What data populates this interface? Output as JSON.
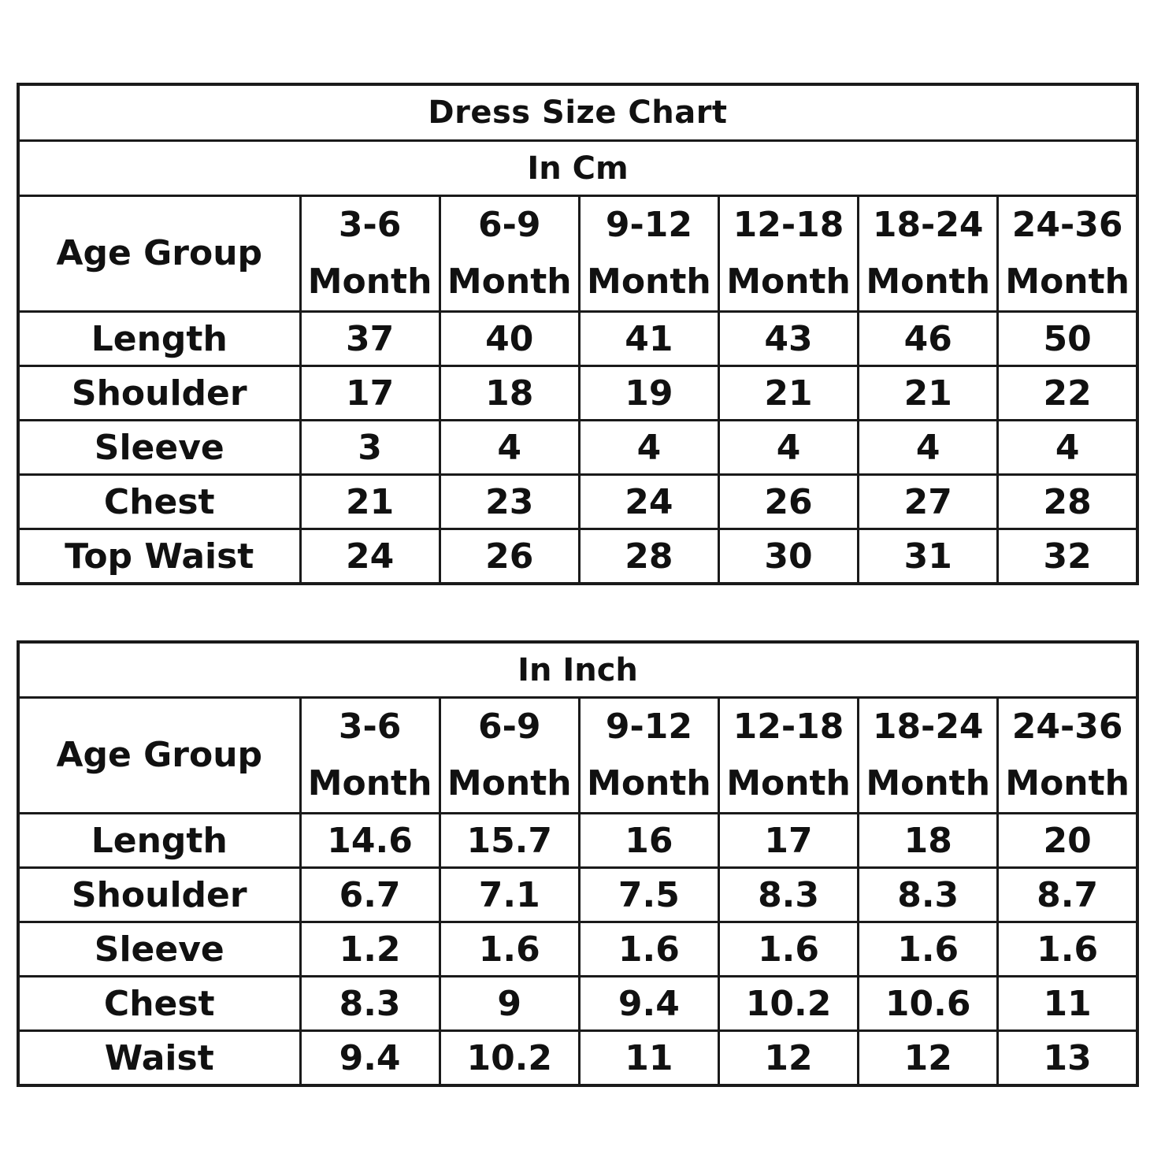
{
  "title": "Dress Size Chart",
  "cm_table": {
    "unit_label": "In Cm",
    "header_label": "Age Group",
    "columns": [
      {
        "range": "3-6",
        "unit": "Month"
      },
      {
        "range": "6-9",
        "unit": "Month"
      },
      {
        "range": "9-12",
        "unit": "Month"
      },
      {
        "range": "12-18",
        "unit": "Month"
      },
      {
        "range": "18-24",
        "unit": "Month"
      },
      {
        "range": "24-36",
        "unit": "Month"
      }
    ],
    "rows": [
      {
        "label": "Length",
        "values": [
          "37",
          "40",
          "41",
          "43",
          "46",
          "50"
        ]
      },
      {
        "label": "Shoulder",
        "values": [
          "17",
          "18",
          "19",
          "21",
          "21",
          "22"
        ]
      },
      {
        "label": "Sleeve",
        "values": [
          "3",
          "4",
          "4",
          "4",
          "4",
          "4"
        ]
      },
      {
        "label": "Chest",
        "values": [
          "21",
          "23",
          "24",
          "26",
          "27",
          "28"
        ]
      },
      {
        "label": "Top Waist",
        "values": [
          "24",
          "26",
          "28",
          "30",
          "31",
          "32"
        ]
      }
    ]
  },
  "inch_table": {
    "unit_label": "In Inch",
    "header_label": "Age Group",
    "columns": [
      {
        "range": "3-6",
        "unit": "Month"
      },
      {
        "range": "6-9",
        "unit": "Month"
      },
      {
        "range": "9-12",
        "unit": "Month"
      },
      {
        "range": "12-18",
        "unit": "Month"
      },
      {
        "range": "18-24",
        "unit": "Month"
      },
      {
        "range": "24-36",
        "unit": "Month"
      }
    ],
    "rows": [
      {
        "label": "Length",
        "values": [
          "14.6",
          "15.7",
          "16",
          "17",
          "18",
          "20"
        ]
      },
      {
        "label": "Shoulder",
        "values": [
          "6.7",
          "7.1",
          "7.5",
          "8.3",
          "8.3",
          "8.7"
        ]
      },
      {
        "label": "Sleeve",
        "values": [
          "1.2",
          "1.6",
          "1.6",
          "1.6",
          "1.6",
          "1.6"
        ]
      },
      {
        "label": "Chest",
        "values": [
          "8.3",
          "9",
          "9.4",
          "10.2",
          "10.6",
          "11"
        ]
      },
      {
        "label": "Waist",
        "values": [
          "9.4",
          "10.2",
          "11",
          "12",
          "12",
          "13"
        ]
      }
    ]
  }
}
